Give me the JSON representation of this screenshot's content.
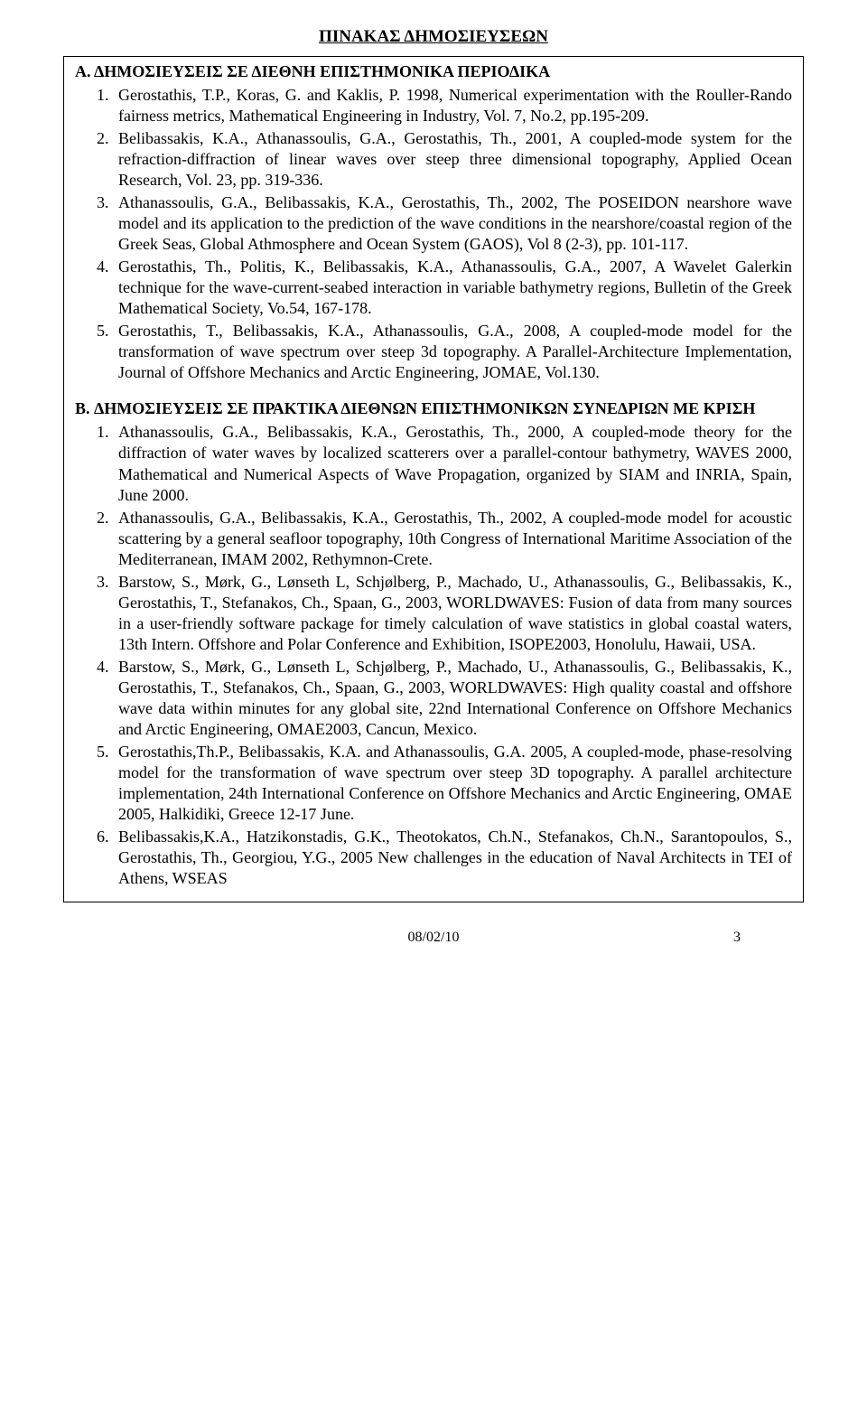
{
  "title": "ΠΙΝΑΚΑΣ ΔΗΜΟΣΙΕΥΣΕΩΝ",
  "sectionA": {
    "heading": "Α. ΔΗΜΟΣΙΕΥΣΕΙΣ ΣΕ ΔΙΕΘΝΗ ΕΠΙΣΤΗΜΟΝΙΚΑ ΠΕΡΙΟΔΙΚΑ",
    "items": [
      "Gerostathis, T.P., Koras, G. and Kaklis, P. 1998, Numerical experimentation with the Rouller-Rando fairness metrics, Mathematical Engineering in Industry, Vol. 7, No.2, pp.195-209.",
      "Belibassakis, K.A., Athanassoulis, G.A., Gerostathis, Th., 2001, A coupled-mode system for the refraction-diffraction of linear waves over steep three dimensional topography, Applied Ocean Research, Vol. 23, pp. 319-336.",
      "Athanassoulis, G.A., Belibassakis, K.A., Gerostathis, Th., 2002, The POSEIDON nearshore wave model and its application to the prediction of the wave conditions in the nearshore/coastal region of the Greek Seas, Global Athmosphere and Ocean System (GAOS), Vol 8 (2-3), pp. 101-117.",
      "Gerostathis, Th., Politis, K., Belibassakis, K.A., Athanassoulis, G.A., 2007, A Wavelet Galerkin technique for the wave-current-seabed interaction in variable bathymetry regions, Bulletin of the Greek Mathematical Society, Vo.54, 167-178.",
      "Gerostathis, T., Belibassakis, K.A., Athanassoulis, G.A., 2008, A coupled-mode model for the transformation of wave spectrum over steep 3d topography. A Parallel-Architecture Implementation, Journal of Offshore Mechanics and Arctic Engineering, JOMAE, Vol.130."
    ]
  },
  "sectionB": {
    "heading": "B. ΔΗΜΟΣΙΕΥΣΕΙΣ ΣΕ ΠΡΑΚΤΙΚΑ ΔΙΕΘΝΩΝ ΕΠΙΣΤΗΜΟΝΙΚΩΝ ΣΥΝΕΔΡΙΩΝ ΜΕ ΚΡΙΣΗ",
    "items": [
      "Athanassoulis, G.A., Belibassakis, K.A., Gerostathis, Th., 2000, A coupled-mode theory for the diffraction of water waves by localized scatterers over a parallel-contour bathymetry, WAVES 2000, Mathematical and Numerical Aspects of Wave Propagation, organized by SIAM and INRIA, Spain, June 2000.",
      "Athanassoulis, G.A., Belibassakis, K.A., Gerostathis, Th., 2002, A coupled-mode model for acoustic scattering by a general seafloor topography, 10th Congress of International Maritime Association of the Mediterranean, IMAM 2002, Rethymnon-Crete.",
      "Barstow, S., Mørk, G., Lønseth L, Schjølberg, P., Machado, U., Athanassoulis, G., Belibassakis, K., Gerostathis, T., Stefanakos, Ch., Spaan, G., 2003, WORLDWAVES: Fusion of data from many sources in a user-friendly software package for timely calculation of wave statistics in global coastal waters, 13th Intern. Offshore and Polar Conference and Exhibition, ISOPE2003, Honolulu, Hawaii, USA.",
      "Barstow, S., Mørk, G., Lønseth L, Schjølberg, P., Machado, U., Athanassoulis, G., Belibassakis, K., Gerostathis, T., Stefanakos, Ch., Spaan, G., 2003, WORLDWAVES: High quality coastal and offshore wave data within minutes for any global site, 22nd International Conference on Offshore Mechanics and Arctic Engineering, OMAE2003, Cancun, Mexico.",
      "Gerostathis,Th.P., Belibassakis, K.A. and Athanassoulis, G.A. 2005, A coupled-mode, phase-resolving model for the transformation of wave spectrum over steep 3D topography. A parallel architecture implementation, 24th International Conference on Offshore Mechanics and Arctic Engineering, OMAE 2005, Halkidiki, Greece 12-17 June.",
      "Belibassakis,K.A., Hatzikonstadis, G.K., Theotokatos, Ch.N., Stefanakos, Ch.N., Sarantopoulos, S., Gerostathis, Th., Georgiou, Y.G., 2005 New challenges in the education of Naval Architects in TEI of Athens, WSEAS"
    ]
  },
  "footer": {
    "date": "08/02/10",
    "page": "3"
  }
}
